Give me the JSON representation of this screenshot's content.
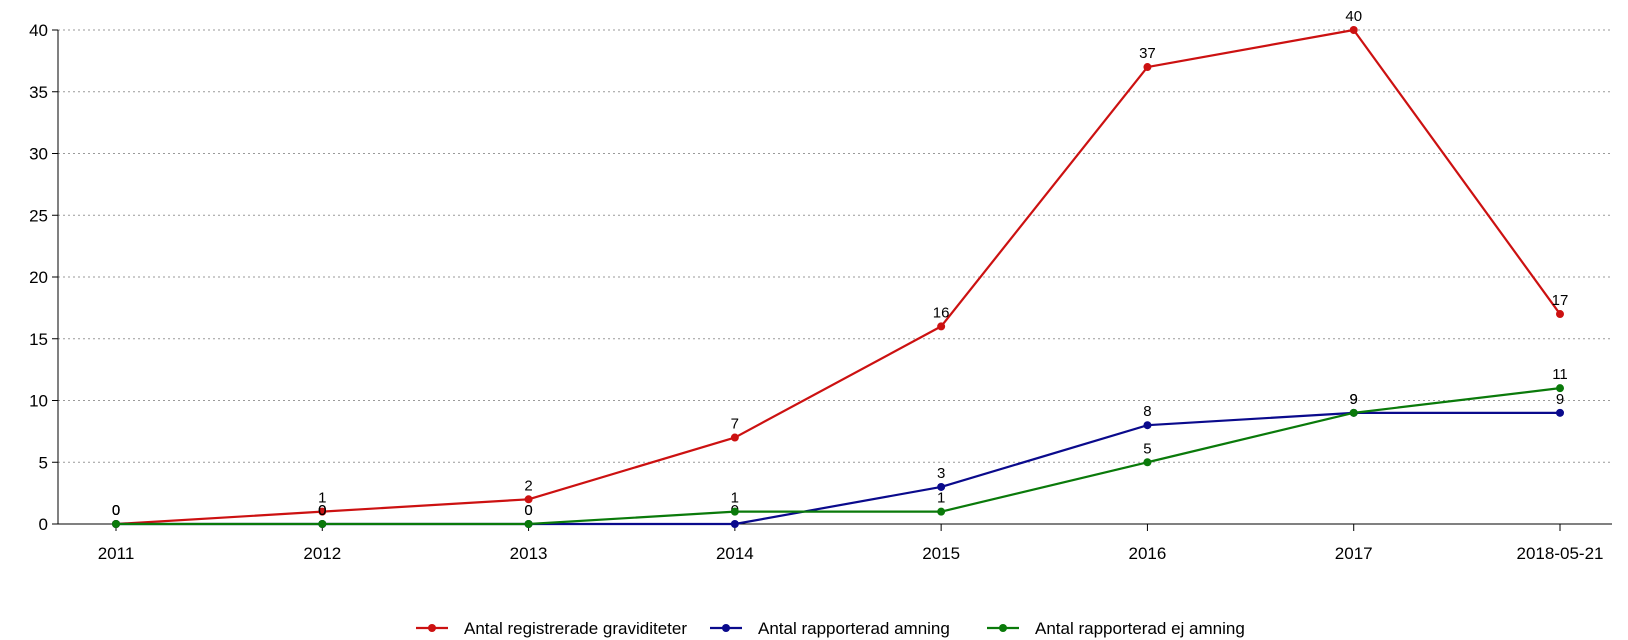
{
  "chart_data": {
    "type": "line",
    "categories": [
      "2011",
      "2012",
      "2013",
      "2014",
      "2015",
      "2016",
      "2017",
      "2018-05-21"
    ],
    "series": [
      {
        "name": "Antal registrerade graviditeter",
        "color": "#cc1111",
        "values": [
          0,
          1,
          2,
          7,
          16,
          37,
          40,
          17
        ]
      },
      {
        "name": "Antal rapporterad amning",
        "color": "#0a0a8c",
        "values": [
          0,
          0,
          0,
          0,
          3,
          8,
          9,
          9
        ]
      },
      {
        "name": "Antal rapporterad ej amning",
        "color": "#0a7a0a",
        "values": [
          0,
          0,
          0,
          1,
          1,
          5,
          9,
          11
        ]
      }
    ],
    "yticks": [
      0,
      5,
      10,
      15,
      20,
      25,
      30,
      35,
      40
    ],
    "ylim": [
      0,
      40
    ],
    "grid": "horizontal dotted",
    "legend": "bottom-center",
    "title": "",
    "xlabel": "",
    "ylabel": ""
  }
}
